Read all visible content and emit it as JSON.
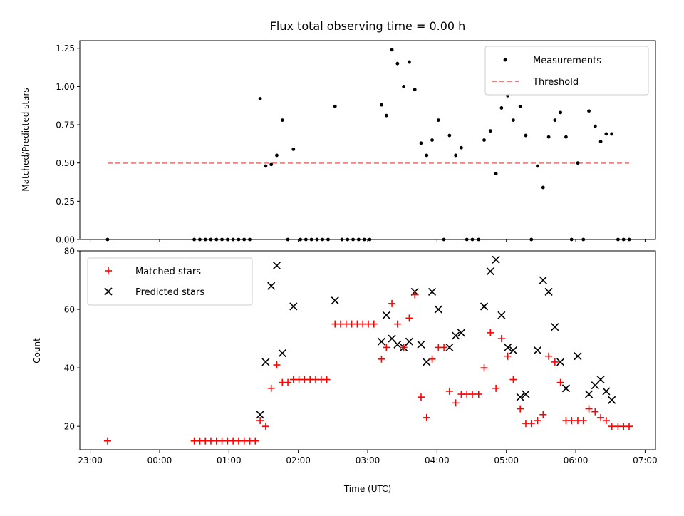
{
  "chart_data": [
    {
      "type": "scatter",
      "title": "Flux total observing time = 0.00 h",
      "xlabel": "",
      "ylabel": "Matched/Predicted stars",
      "x_unit": "hours since 00:00 UTC (negative = previous day)",
      "xlim": [
        -1.15,
        7.15
      ],
      "ylim": [
        0,
        1.3
      ],
      "yticks": [
        "0.00",
        "0.25",
        "0.50",
        "0.75",
        "1.00",
        "1.25"
      ],
      "legend": [
        "Measurements",
        "Threshold"
      ],
      "legend_position": "top-right",
      "series": [
        {
          "name": "Measurements",
          "color": "#000000",
          "points": [
            [
              -0.75,
              0.0
            ],
            [
              0.5,
              0.0
            ],
            [
              0.58,
              0.0
            ],
            [
              0.66,
              0.0
            ],
            [
              0.74,
              0.0
            ],
            [
              0.82,
              0.0
            ],
            [
              0.9,
              0.0
            ],
            [
              0.98,
              0.0
            ],
            [
              1.06,
              0.0
            ],
            [
              1.14,
              0.0
            ],
            [
              1.22,
              0.0
            ],
            [
              1.3,
              0.0
            ],
            [
              1.45,
              0.92
            ],
            [
              1.53,
              0.48
            ],
            [
              1.61,
              0.49
            ],
            [
              1.69,
              0.55
            ],
            [
              1.77,
              0.78
            ],
            [
              1.85,
              0.0
            ],
            [
              1.93,
              0.59
            ],
            [
              2.03,
              0.0
            ],
            [
              2.11,
              0.0
            ],
            [
              2.19,
              0.0
            ],
            [
              2.27,
              0.0
            ],
            [
              2.35,
              0.0
            ],
            [
              2.43,
              0.0
            ],
            [
              2.53,
              0.87
            ],
            [
              2.63,
              0.0
            ],
            [
              2.71,
              0.0
            ],
            [
              2.79,
              0.0
            ],
            [
              2.87,
              0.0
            ],
            [
              2.95,
              0.0
            ],
            [
              3.03,
              0.0
            ],
            [
              3.2,
              0.88
            ],
            [
              3.27,
              0.81
            ],
            [
              3.35,
              1.24
            ],
            [
              3.43,
              1.15
            ],
            [
              3.52,
              1.0
            ],
            [
              3.6,
              1.16
            ],
            [
              3.68,
              0.98
            ],
            [
              3.77,
              0.63
            ],
            [
              3.85,
              0.55
            ],
            [
              3.93,
              0.65
            ],
            [
              4.02,
              0.78
            ],
            [
              4.1,
              0.0
            ],
            [
              4.18,
              0.68
            ],
            [
              4.27,
              0.55
            ],
            [
              4.35,
              0.6
            ],
            [
              4.43,
              0.0
            ],
            [
              4.51,
              0.0
            ],
            [
              4.6,
              0.0
            ],
            [
              4.68,
              0.65
            ],
            [
              4.77,
              0.71
            ],
            [
              4.85,
              0.43
            ],
            [
              4.93,
              0.86
            ],
            [
              5.02,
              0.94
            ],
            [
              5.1,
              0.78
            ],
            [
              5.2,
              0.87
            ],
            [
              5.28,
              0.68
            ],
            [
              5.36,
              0.0
            ],
            [
              5.45,
              0.48
            ],
            [
              5.53,
              0.34
            ],
            [
              5.61,
              0.67
            ],
            [
              5.7,
              0.78
            ],
            [
              5.78,
              0.83
            ],
            [
              5.86,
              0.67
            ],
            [
              5.94,
              0.0
            ],
            [
              6.03,
              0.5
            ],
            [
              6.11,
              0.0
            ],
            [
              6.19,
              0.84
            ],
            [
              6.28,
              0.74
            ],
            [
              6.36,
              0.64
            ],
            [
              6.44,
              0.69
            ],
            [
              6.52,
              0.69
            ],
            [
              6.61,
              0.0
            ],
            [
              6.69,
              0.0
            ],
            [
              6.77,
              0.0
            ]
          ]
        },
        {
          "name": "Threshold",
          "color": "#f08080",
          "style": "dashed",
          "x": [
            -0.75,
            6.77
          ],
          "y": [
            0.5,
            0.5
          ]
        }
      ]
    },
    {
      "type": "scatter",
      "title": "",
      "xlabel": "Time (UTC)",
      "ylabel": "Count",
      "x_unit": "hours since 00:00 UTC (negative = previous day)",
      "xlim": [
        -1.15,
        7.15
      ],
      "ylim": [
        12,
        80
      ],
      "yticks": [
        "20",
        "40",
        "60",
        "80"
      ],
      "xticks": [
        {
          "value": -1,
          "label": "23:00"
        },
        {
          "value": 0,
          "label": "00:00"
        },
        {
          "value": 1,
          "label": "01:00"
        },
        {
          "value": 2,
          "label": "02:00"
        },
        {
          "value": 3,
          "label": "03:00"
        },
        {
          "value": 4,
          "label": "04:00"
        },
        {
          "value": 5,
          "label": "05:00"
        },
        {
          "value": 6,
          "label": "06:00"
        },
        {
          "value": 7,
          "label": "07:00"
        }
      ],
      "legend": [
        "Matched stars",
        "Predicted stars"
      ],
      "legend_position": "top-left",
      "series": [
        {
          "name": "Matched stars",
          "marker": "plus",
          "color": "#ff0000",
          "points": [
            [
              -0.75,
              15
            ],
            [
              0.5,
              15
            ],
            [
              0.58,
              15
            ],
            [
              0.66,
              15
            ],
            [
              0.74,
              15
            ],
            [
              0.82,
              15
            ],
            [
              0.9,
              15
            ],
            [
              0.98,
              15
            ],
            [
              1.06,
              15
            ],
            [
              1.14,
              15
            ],
            [
              1.22,
              15
            ],
            [
              1.3,
              15
            ],
            [
              1.38,
              15
            ],
            [
              1.45,
              22
            ],
            [
              1.53,
              20
            ],
            [
              1.61,
              33
            ],
            [
              1.69,
              41
            ],
            [
              1.77,
              35
            ],
            [
              1.85,
              35
            ],
            [
              1.93,
              36
            ],
            [
              2.01,
              36
            ],
            [
              2.09,
              36
            ],
            [
              2.17,
              36
            ],
            [
              2.25,
              36
            ],
            [
              2.33,
              36
            ],
            [
              2.41,
              36
            ],
            [
              2.53,
              55
            ],
            [
              2.61,
              55
            ],
            [
              2.69,
              55
            ],
            [
              2.77,
              55
            ],
            [
              2.85,
              55
            ],
            [
              2.93,
              55
            ],
            [
              3.01,
              55
            ],
            [
              3.09,
              55
            ],
            [
              3.2,
              43
            ],
            [
              3.27,
              47
            ],
            [
              3.35,
              62
            ],
            [
              3.43,
              55
            ],
            [
              3.52,
              47
            ],
            [
              3.6,
              57
            ],
            [
              3.68,
              65
            ],
            [
              3.77,
              30
            ],
            [
              3.85,
              23
            ],
            [
              3.93,
              43
            ],
            [
              4.02,
              47
            ],
            [
              4.1,
              47
            ],
            [
              4.18,
              32
            ],
            [
              4.27,
              28
            ],
            [
              4.35,
              31
            ],
            [
              4.43,
              31
            ],
            [
              4.51,
              31
            ],
            [
              4.6,
              31
            ],
            [
              4.68,
              40
            ],
            [
              4.77,
              52
            ],
            [
              4.85,
              33
            ],
            [
              4.93,
              50
            ],
            [
              5.02,
              44
            ],
            [
              5.1,
              36
            ],
            [
              5.2,
              26
            ],
            [
              5.28,
              21
            ],
            [
              5.36,
              21
            ],
            [
              5.45,
              22
            ],
            [
              5.53,
              24
            ],
            [
              5.61,
              44
            ],
            [
              5.7,
              42
            ],
            [
              5.78,
              35
            ],
            [
              5.86,
              22
            ],
            [
              5.94,
              22
            ],
            [
              6.03,
              22
            ],
            [
              6.11,
              22
            ],
            [
              6.19,
              26
            ],
            [
              6.28,
              25
            ],
            [
              6.36,
              23
            ],
            [
              6.44,
              22
            ],
            [
              6.52,
              20
            ],
            [
              6.61,
              20
            ],
            [
              6.69,
              20
            ],
            [
              6.77,
              20
            ]
          ]
        },
        {
          "name": "Predicted stars",
          "marker": "x",
          "color": "#000000",
          "points": [
            [
              1.45,
              24
            ],
            [
              1.53,
              42
            ],
            [
              1.61,
              68
            ],
            [
              1.69,
              75
            ],
            [
              1.77,
              45
            ],
            [
              1.93,
              61
            ],
            [
              2.53,
              63
            ],
            [
              3.2,
              49
            ],
            [
              3.27,
              58
            ],
            [
              3.35,
              50
            ],
            [
              3.43,
              48
            ],
            [
              3.52,
              47
            ],
            [
              3.6,
              49
            ],
            [
              3.68,
              66
            ],
            [
              3.77,
              48
            ],
            [
              3.85,
              42
            ],
            [
              3.93,
              66
            ],
            [
              4.02,
              60
            ],
            [
              4.18,
              47
            ],
            [
              4.27,
              51
            ],
            [
              4.35,
              52
            ],
            [
              4.68,
              61
            ],
            [
              4.77,
              73
            ],
            [
              4.85,
              77
            ],
            [
              4.93,
              58
            ],
            [
              5.02,
              47
            ],
            [
              5.1,
              46
            ],
            [
              5.2,
              30
            ],
            [
              5.28,
              31
            ],
            [
              5.45,
              46
            ],
            [
              5.53,
              70
            ],
            [
              5.61,
              66
            ],
            [
              5.7,
              54
            ],
            [
              5.78,
              42
            ],
            [
              5.86,
              33
            ],
            [
              6.03,
              44
            ],
            [
              6.19,
              31
            ],
            [
              6.28,
              34
            ],
            [
              6.36,
              36
            ],
            [
              6.44,
              32
            ],
            [
              6.52,
              29
            ]
          ]
        }
      ]
    }
  ]
}
